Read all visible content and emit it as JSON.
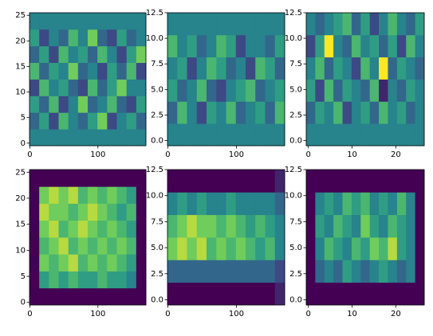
{
  "chart_data": [
    {
      "type": "heatmap",
      "xlim": [
        -0.5,
        170.5
      ],
      "ylim": [
        -0.5,
        25.5
      ],
      "xticks": [
        0,
        100
      ],
      "yticks": [
        0,
        5,
        10,
        15,
        20,
        25
      ],
      "clim": [
        0,
        9
      ],
      "colormap": [
        "#440154",
        "#3b528b",
        "#21918c",
        "#5ec962",
        "#fde725"
      ],
      "z": [
        [
          4,
          4,
          4,
          4,
          4,
          4,
          4,
          4,
          4,
          4,
          4,
          4
        ],
        [
          3,
          5,
          2,
          6,
          4,
          3,
          5,
          7,
          2,
          4,
          5,
          3
        ],
        [
          5,
          3,
          6,
          2,
          4,
          7,
          3,
          4,
          6,
          3,
          2,
          5
        ],
        [
          2,
          6,
          4,
          5,
          3,
          2,
          6,
          3,
          5,
          7,
          4,
          4
        ],
        [
          6,
          3,
          5,
          4,
          7,
          3,
          4,
          2,
          5,
          3,
          6,
          2
        ],
        [
          3,
          5,
          2,
          6,
          4,
          5,
          3,
          6,
          4,
          2,
          5,
          7
        ],
        [
          5,
          2,
          4,
          3,
          6,
          4,
          7,
          3,
          2,
          5,
          3,
          4
        ],
        [
          4,
          4,
          4,
          4,
          4,
          4,
          4,
          4,
          4,
          4,
          4,
          4
        ]
      ]
    },
    {
      "type": "heatmap",
      "xlim": [
        -0.5,
        170.5
      ],
      "ylim": [
        -0.5,
        12.5
      ],
      "xticks": [
        0,
        100
      ],
      "yticks": [
        {
          "value": 0,
          "label": "0.0"
        },
        2.5,
        {
          "value": 5,
          "label": "5.0"
        },
        7.5,
        {
          "value": 10,
          "label": "10.0"
        },
        12.5
      ],
      "clim": [
        0,
        9
      ],
      "colormap": [
        "#440154",
        "#3b528b",
        "#21918c",
        "#5ec962",
        "#fde725"
      ],
      "z": [
        [
          4,
          4,
          4,
          4,
          4,
          4,
          4,
          4,
          4,
          4,
          4,
          4
        ],
        [
          3,
          6,
          4,
          2,
          5,
          4,
          6,
          3,
          4,
          5,
          3,
          6
        ],
        [
          5,
          3,
          4,
          6,
          3,
          2,
          4,
          5,
          6,
          3,
          4,
          5
        ],
        [
          4,
          5,
          2,
          4,
          6,
          5,
          3,
          4,
          2,
          6,
          5,
          3
        ],
        [
          6,
          4,
          5,
          3,
          4,
          6,
          5,
          2,
          4,
          4,
          3,
          5
        ],
        [
          4,
          4,
          4,
          4,
          4,
          4,
          4,
          4,
          4,
          4,
          4,
          4
        ]
      ]
    },
    {
      "type": "heatmap",
      "xlim": [
        -0.5,
        26.5
      ],
      "ylim": [
        -0.5,
        12.5
      ],
      "xticks": [
        0,
        10,
        20
      ],
      "yticks": [
        {
          "value": 0,
          "label": "0.0"
        },
        2.5,
        {
          "value": 5,
          "label": "5.0"
        },
        7.5,
        {
          "value": 10,
          "label": "10.0"
        },
        12.5
      ],
      "clim": [
        0,
        9
      ],
      "colormap": [
        "#440154",
        "#3b528b",
        "#21918c",
        "#5ec962",
        "#fde725"
      ],
      "z": [
        [
          4,
          4,
          4,
          4,
          4,
          4,
          4,
          4,
          4,
          4,
          4,
          4,
          4
        ],
        [
          3,
          5,
          4,
          6,
          2,
          4,
          5,
          3,
          6,
          4,
          5,
          3,
          4
        ],
        [
          5,
          2,
          6,
          3,
          5,
          4,
          3,
          6,
          1,
          4,
          3,
          5,
          4
        ],
        [
          4,
          6,
          3,
          5,
          4,
          2,
          6,
          4,
          9,
          3,
          5,
          4,
          3
        ],
        [
          2,
          5,
          9,
          4,
          3,
          6,
          4,
          5,
          3,
          5,
          2,
          6,
          4
        ],
        [
          4,
          3,
          4,
          5,
          6,
          3,
          5,
          2,
          4,
          6,
          4,
          3,
          5
        ]
      ]
    },
    {
      "type": "heatmap",
      "xlim": [
        -0.5,
        170.5
      ],
      "ylim": [
        -0.5,
        25.5
      ],
      "xticks": [
        0,
        100
      ],
      "yticks": [
        0,
        5,
        10,
        15,
        20,
        25
      ],
      "clim": [
        0,
        9
      ],
      "colormap": [
        "#440154",
        "#3b528b",
        "#21918c",
        "#5ec962",
        "#fde725"
      ],
      "z": [
        [
          0,
          0,
          0,
          0,
          0,
          0,
          0,
          0,
          0,
          0,
          0,
          0
        ],
        [
          0,
          5,
          6,
          5,
          6,
          5,
          5,
          6,
          5,
          5,
          4,
          0
        ],
        [
          0,
          7,
          6,
          7,
          8,
          6,
          7,
          6,
          7,
          6,
          5,
          0
        ],
        [
          0,
          6,
          7,
          8,
          6,
          7,
          6,
          7,
          6,
          7,
          6,
          0
        ],
        [
          0,
          7,
          8,
          6,
          7,
          8,
          7,
          6,
          7,
          6,
          5,
          0
        ],
        [
          0,
          8,
          7,
          7,
          6,
          7,
          8,
          7,
          6,
          5,
          6,
          0
        ],
        [
          0,
          7,
          8,
          7,
          8,
          6,
          7,
          6,
          7,
          6,
          5,
          0
        ],
        [
          0,
          0,
          0,
          0,
          0,
          0,
          0,
          0,
          0,
          0,
          0,
          0
        ]
      ]
    },
    {
      "type": "heatmap",
      "xlim": [
        -0.5,
        170.5
      ],
      "ylim": [
        -0.5,
        12.5
      ],
      "xticks": [
        0,
        100
      ],
      "yticks": [
        {
          "value": 0,
          "label": "0.0"
        },
        2.5,
        {
          "value": 5,
          "label": "5.0"
        },
        7.5,
        {
          "value": 10,
          "label": "10.0"
        },
        12.5
      ],
      "clim": [
        0,
        9
      ],
      "colormap": [
        "#440154",
        "#3b528b",
        "#21918c",
        "#5ec962",
        "#fde725"
      ],
      "z": [
        [
          0,
          0,
          0,
          0,
          0,
          0,
          0,
          0,
          0,
          0,
          0,
          1
        ],
        [
          3,
          3,
          3,
          3,
          3,
          3,
          3,
          3,
          3,
          3,
          3,
          2
        ],
        [
          7,
          8,
          7,
          8,
          6,
          7,
          6,
          7,
          6,
          5,
          6,
          4
        ],
        [
          6,
          7,
          8,
          7,
          7,
          6,
          7,
          6,
          5,
          6,
          5,
          4
        ],
        [
          4,
          5,
          4,
          5,
          4,
          4,
          5,
          4,
          4,
          4,
          4,
          3
        ],
        [
          0,
          0,
          0,
          0,
          0,
          0,
          0,
          0,
          0,
          0,
          0,
          1
        ]
      ]
    },
    {
      "type": "heatmap",
      "xlim": [
        -0.5,
        26.5
      ],
      "ylim": [
        -0.5,
        12.5
      ],
      "xticks": [
        0,
        10,
        20
      ],
      "yticks": [
        {
          "value": 0,
          "label": "0.0"
        },
        2.5,
        {
          "value": 5,
          "label": "5.0"
        },
        7.5,
        {
          "value": 10,
          "label": "10.0"
        },
        12.5
      ],
      "clim": [
        0,
        9
      ],
      "colormap": [
        "#440154",
        "#3b528b",
        "#21918c",
        "#5ec962",
        "#fde725"
      ],
      "z": [
        [
          0,
          0,
          0,
          0,
          0,
          0,
          0,
          0,
          0,
          0,
          0,
          0,
          0
        ],
        [
          0,
          3,
          4,
          3,
          5,
          4,
          3,
          4,
          5,
          4,
          3,
          4,
          0
        ],
        [
          0,
          4,
          6,
          5,
          4,
          6,
          5,
          7,
          6,
          8,
          5,
          4,
          0
        ],
        [
          0,
          5,
          4,
          6,
          5,
          4,
          7,
          5,
          4,
          6,
          5,
          4,
          0
        ],
        [
          0,
          4,
          5,
          4,
          6,
          5,
          6,
          4,
          5,
          4,
          6,
          4,
          0
        ],
        [
          0,
          0,
          0,
          0,
          0,
          0,
          0,
          0,
          0,
          0,
          0,
          0,
          0
        ]
      ]
    }
  ]
}
